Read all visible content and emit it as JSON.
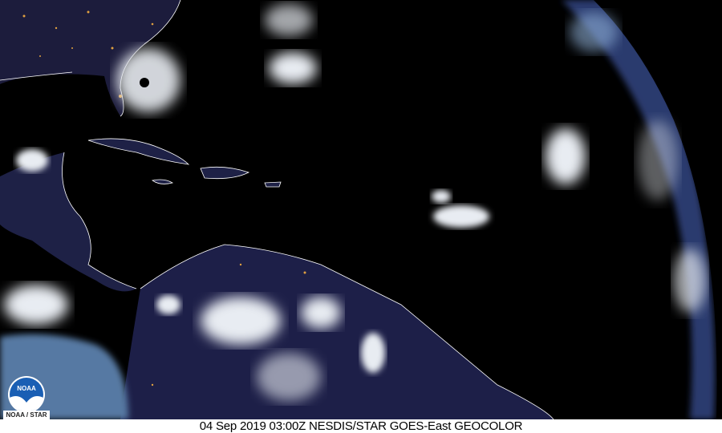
{
  "caption": "04 Sep 2019 03:00Z NESDIS/STAR GOES-East GEOCOLOR",
  "logo": {
    "emblem_text": "NOAA",
    "label": "NOAA / STAR"
  },
  "colors": {
    "space": "#000000",
    "land_night": "#1a1b3a",
    "ocean_day": "#5a7fa8",
    "cloud": "#e8ecf2",
    "coastline": "#ffffff",
    "city_lights": "#e0a040"
  }
}
